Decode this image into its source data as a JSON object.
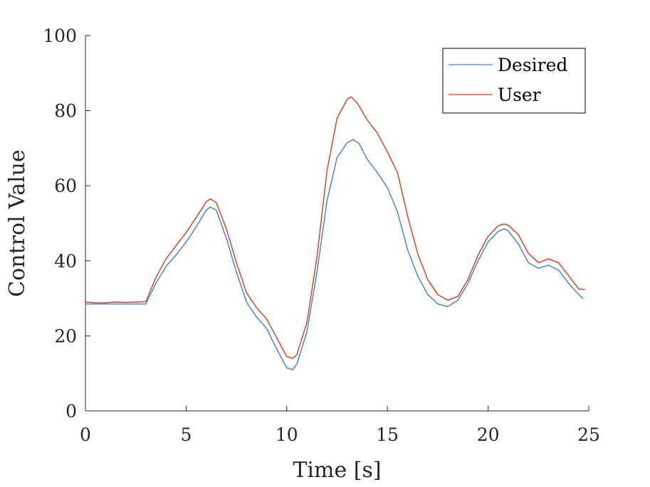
{
  "chart_data": {
    "type": "line",
    "title": "",
    "xlabel": "Time [s]",
    "ylabel": "Control Value",
    "xlim": [
      0,
      25
    ],
    "ylim": [
      0,
      100
    ],
    "xticks": [
      "0",
      "5",
      "10",
      "15",
      "20",
      "25"
    ],
    "yticks": [
      "0",
      "20",
      "40",
      "60",
      "80",
      "100"
    ],
    "grid": false,
    "legend_position": "top-right",
    "colors": {
      "desired": "#3b7fd9",
      "user": "#d63a16",
      "axis": "#262626"
    },
    "series": [
      {
        "name": "Desired",
        "x": [
          0,
          0.5,
          1,
          1.5,
          2,
          2.5,
          3,
          3.5,
          4,
          4.5,
          5,
          5.5,
          6,
          6.2,
          6.5,
          7,
          7.5,
          8,
          8.5,
          9,
          9.5,
          10,
          10.3,
          10.5,
          11,
          11.5,
          12,
          12.5,
          13,
          13.3,
          13.6,
          14,
          14.5,
          15,
          15.5,
          16,
          16.5,
          17,
          17.5,
          18,
          18.5,
          19,
          19.5,
          20,
          20.5,
          20.8,
          21,
          21.5,
          22,
          22.5,
          23,
          23.5,
          24,
          24.5,
          24.7
        ],
        "y": [
          28.5,
          28.5,
          28.5,
          28.5,
          28.5,
          28.5,
          28.5,
          34,
          38.5,
          41.5,
          45,
          49,
          53.5,
          54.3,
          53.5,
          46,
          37,
          29,
          25,
          22,
          16.5,
          11.5,
          11,
          12.5,
          21,
          37,
          56,
          67.5,
          71.5,
          72.3,
          71.2,
          67,
          63.5,
          59.5,
          53,
          43,
          36,
          31,
          28.5,
          27.8,
          29.5,
          34,
          40,
          45,
          47.8,
          48.5,
          48,
          44.5,
          39.5,
          38,
          38.8,
          37.5,
          34,
          31,
          30
        ]
      },
      {
        "name": "User",
        "x": [
          0,
          0.5,
          1,
          1.5,
          2,
          2.5,
          3,
          3.5,
          4,
          4.5,
          5,
          5.5,
          6,
          6.2,
          6.5,
          7,
          7.5,
          8,
          8.5,
          9,
          9.5,
          10,
          10.3,
          10.5,
          11,
          11.5,
          12,
          12.5,
          13,
          13.2,
          13.5,
          14,
          14.5,
          15,
          15.5,
          16,
          16.5,
          17,
          17.5,
          18,
          18.5,
          19,
          19.5,
          20,
          20.5,
          20.8,
          21,
          21.5,
          22,
          22.5,
          23,
          23.5,
          24,
          24.5,
          24.8
        ],
        "y": [
          29,
          28.8,
          28.8,
          29,
          28.9,
          29,
          29.1,
          35.5,
          40.5,
          44,
          47.5,
          51.5,
          55.7,
          56.5,
          55.5,
          48.5,
          39.5,
          31.5,
          27.5,
          24.5,
          19.5,
          14.5,
          14,
          15,
          23.5,
          41,
          64,
          78,
          83,
          83.7,
          82,
          77.5,
          74,
          69,
          63.5,
          52,
          42,
          35,
          31,
          29.5,
          30.5,
          35,
          41.5,
          46.5,
          49.3,
          49.8,
          49.5,
          47,
          42,
          39.5,
          40.5,
          39.5,
          36,
          32.5,
          32.3
        ]
      }
    ]
  }
}
